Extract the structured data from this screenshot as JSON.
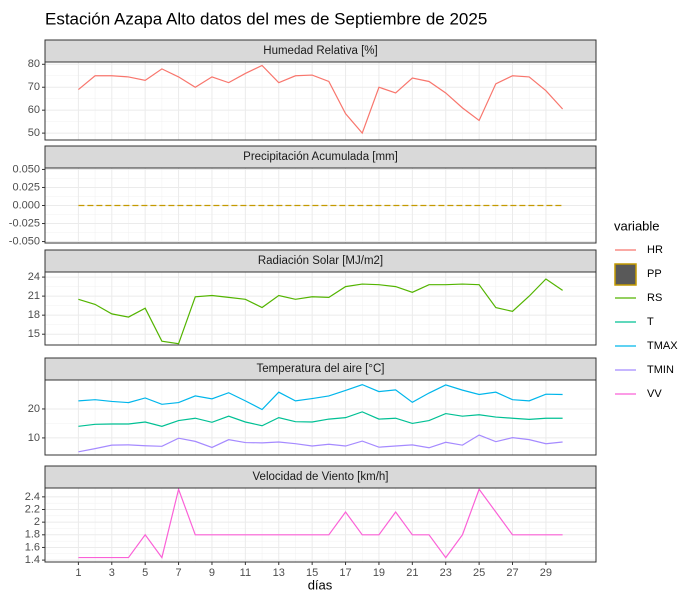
{
  "title": "Estación Azapa Alto datos del mes de Septiembre de 2025",
  "x_label": "días",
  "legend_title": "variable",
  "chart_data": [
    {
      "type": "line",
      "title": "Humedad Relativa [%]",
      "x": [
        1,
        2,
        3,
        4,
        5,
        6,
        7,
        8,
        9,
        10,
        11,
        12,
        13,
        14,
        15,
        16,
        17,
        18,
        19,
        20,
        21,
        22,
        23,
        24,
        25,
        26,
        27,
        28,
        29,
        30
      ],
      "xlim": [
        -1,
        32
      ],
      "ylim": [
        47,
        81
      ],
      "yticks": [
        50,
        60,
        70,
        80
      ],
      "grid": true,
      "series": [
        {
          "name": "HR",
          "color": "#F8766D",
          "values": [
            69,
            75,
            75,
            74.5,
            73,
            78,
            74.5,
            70,
            74.5,
            72,
            76,
            79.5,
            72,
            75,
            75.3,
            72.5,
            58.5,
            50,
            70,
            67.5,
            74,
            72.5,
            67.5,
            61,
            55.5,
            71.5,
            75,
            74.5,
            68.5,
            60.5
          ]
        }
      ]
    },
    {
      "type": "line",
      "title": "Precipitación Acumulada [mm]",
      "x": [
        1,
        2,
        3,
        4,
        5,
        6,
        7,
        8,
        9,
        10,
        11,
        12,
        13,
        14,
        15,
        16,
        17,
        18,
        19,
        20,
        21,
        22,
        23,
        24,
        25,
        26,
        27,
        28,
        29,
        30
      ],
      "xlim": [
        -1,
        32
      ],
      "ylim": [
        -0.052,
        0.052
      ],
      "yticks": [
        {
          "value": -0.05,
          "label": "-0.050"
        },
        {
          "value": -0.025,
          "label": "-0.025"
        },
        {
          "value": 0,
          "label": "0.000"
        },
        {
          "value": 0.025,
          "label": "0.025"
        },
        {
          "value": 0.05,
          "label": "0.050"
        }
      ],
      "grid": true,
      "dashed": true,
      "series": [
        {
          "name": "PP",
          "color": "#C49A00",
          "legend_fill": "#595959",
          "values": [
            0,
            0,
            0,
            0,
            0,
            0,
            0,
            0,
            0,
            0,
            0,
            0,
            0,
            0,
            0,
            0,
            0,
            0,
            0,
            0,
            0,
            0,
            0,
            0,
            0,
            0,
            0,
            0,
            0,
            0
          ]
        }
      ]
    },
    {
      "type": "line",
      "title": "Radiación Solar [MJ/m2]",
      "x": [
        1,
        2,
        3,
        4,
        5,
        6,
        7,
        8,
        9,
        10,
        11,
        12,
        13,
        14,
        15,
        16,
        17,
        18,
        19,
        20,
        21,
        22,
        23,
        24,
        25,
        26,
        27,
        28,
        29,
        30
      ],
      "xlim": [
        -1,
        32
      ],
      "ylim": [
        13.3,
        24.8
      ],
      "yticks": [
        15,
        18,
        21,
        24
      ],
      "grid": true,
      "series": [
        {
          "name": "RS",
          "color": "#53B400",
          "values": [
            20.5,
            19.7,
            18.2,
            17.7,
            19.1,
            13.9,
            13.5,
            20.9,
            21.1,
            20.8,
            20.5,
            19.2,
            21.1,
            20.5,
            20.9,
            20.8,
            22.5,
            22.9,
            22.8,
            22.5,
            21.6,
            22.8,
            22.8,
            22.9,
            22.8,
            19.2,
            18.6,
            21.0,
            23.7,
            21.9
          ]
        }
      ]
    },
    {
      "type": "line",
      "title": "Temperatura del aire [°C]",
      "x": [
        1,
        2,
        3,
        4,
        5,
        6,
        7,
        8,
        9,
        10,
        11,
        12,
        13,
        14,
        15,
        16,
        17,
        18,
        19,
        20,
        21,
        22,
        23,
        24,
        25,
        26,
        27,
        28,
        29,
        30
      ],
      "xlim": [
        -1,
        32
      ],
      "ylim": [
        4.1,
        30
      ],
      "yticks": [
        10,
        20
      ],
      "grid": true,
      "series": [
        {
          "name": "T",
          "color": "#00C094",
          "values": [
            14,
            14.7,
            14.8,
            14.8,
            15.5,
            14,
            16,
            16.8,
            15.4,
            17.5,
            15.5,
            14.2,
            17,
            15.6,
            15.5,
            16.5,
            17,
            19,
            16.5,
            16.8,
            15,
            16,
            18.4,
            17.5,
            18,
            17.2,
            16.8,
            16.4,
            16.8,
            16.8
          ]
        },
        {
          "name": "TMAX",
          "color": "#00B6EB",
          "values": [
            22.8,
            23.2,
            22.6,
            22.2,
            23.8,
            21.6,
            22.2,
            24.5,
            23.5,
            25.6,
            22.8,
            19.8,
            25.8,
            22.8,
            23.6,
            24.5,
            26.4,
            28.4,
            26,
            26.6,
            22.3,
            25.5,
            28.3,
            26.5,
            25,
            25.8,
            23.2,
            22.8,
            25.1,
            25
          ]
        },
        {
          "name": "TMIN",
          "color": "#A58AFF",
          "values": [
            5.2,
            6.3,
            7.5,
            7.6,
            7.3,
            7.1,
            9.9,
            8.8,
            6.7,
            9.4,
            8.4,
            8.3,
            8.6,
            8,
            7.2,
            7.8,
            7.2,
            8.9,
            6.8,
            7.2,
            7.6,
            6.6,
            8.5,
            7.5,
            11,
            8.7,
            10.1,
            9.4,
            8,
            8.6
          ]
        }
      ]
    },
    {
      "type": "line",
      "title": "Velocidad de Viento [km/h]",
      "x": [
        1,
        2,
        3,
        4,
        5,
        6,
        7,
        8,
        9,
        10,
        11,
        12,
        13,
        14,
        15,
        16,
        17,
        18,
        19,
        20,
        21,
        22,
        23,
        24,
        25,
        26,
        27,
        28,
        29,
        30
      ],
      "xlim": [
        -1,
        32
      ],
      "ylim": [
        1.37,
        2.54
      ],
      "yticks": [
        1.4,
        1.6,
        1.8,
        2.0,
        2.2,
        2.4
      ],
      "grid": true,
      "xticks": [
        1,
        3,
        5,
        7,
        9,
        11,
        13,
        15,
        17,
        19,
        21,
        23,
        25,
        27,
        29
      ],
      "series": [
        {
          "name": "VV",
          "color": "#FB61D7",
          "values": [
            1.44,
            1.44,
            1.44,
            1.44,
            1.8,
            1.44,
            2.52,
            1.8,
            1.8,
            1.8,
            1.8,
            1.8,
            1.8,
            1.8,
            1.8,
            1.8,
            2.16,
            1.8,
            1.8,
            2.16,
            1.8,
            1.8,
            1.44,
            1.8,
            2.52,
            2.16,
            1.8,
            1.8,
            1.8,
            1.8
          ]
        }
      ]
    }
  ]
}
